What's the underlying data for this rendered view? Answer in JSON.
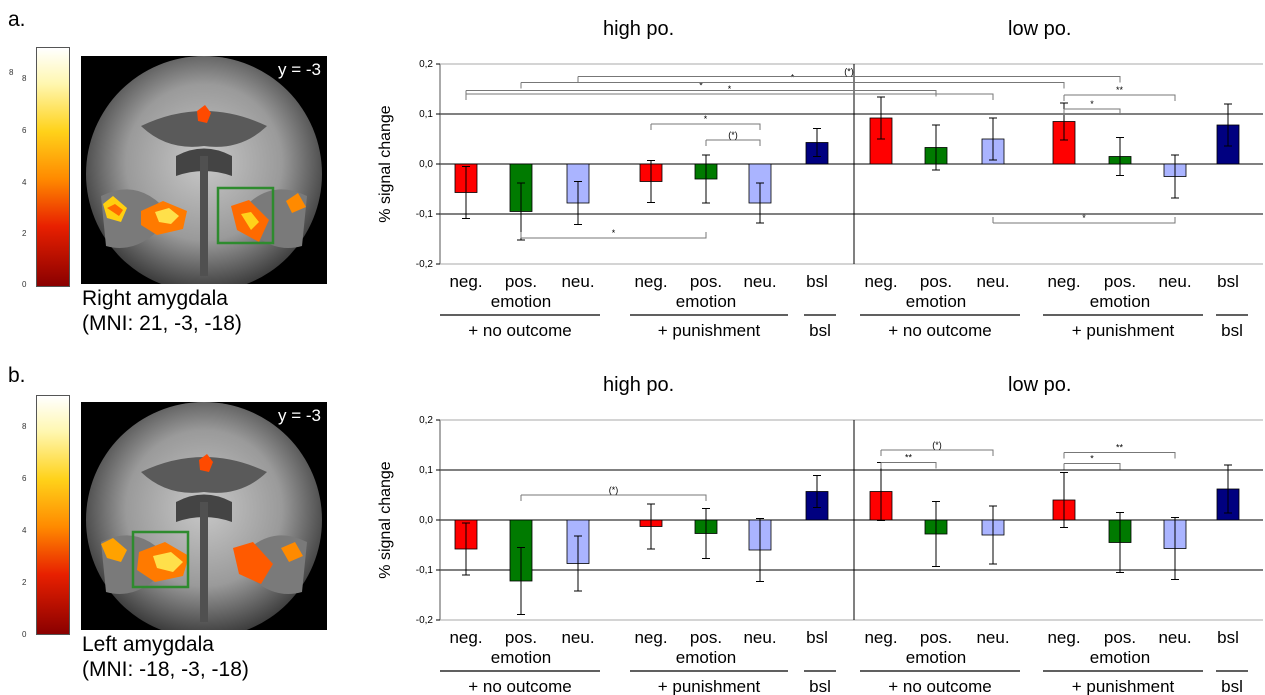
{
  "panels": [
    {
      "label": "a.",
      "slice_label": "y = -3",
      "region": "Right amygdala",
      "mni": "(MNI: 21, -3, -18)",
      "colorbar_ticks": [
        "8",
        "6",
        "4",
        "2",
        "0"
      ]
    },
    {
      "label": "b.",
      "slice_label": "y = -3",
      "region": "Left amygdala",
      "mni": "(MNI: -18, -3, -18)",
      "colorbar_ticks": [
        "8",
        "6",
        "4",
        "2",
        "0"
      ]
    }
  ],
  "colors": {
    "neg": "#ff0000",
    "pos": "#007a00",
    "neu": "#aab4ff",
    "bsl": "#000080"
  },
  "chart_data": [
    {
      "type": "bar",
      "group_titles": [
        "high po.",
        "low po."
      ],
      "ylabel": "% signal change",
      "yticks": [
        "0,2",
        "0,1",
        "0,0",
        "-0,1",
        "-0,2"
      ],
      "ylim": [
        -0.2,
        0.2
      ],
      "categories": [
        "neg.",
        "pos.",
        "neu.",
        "neg.",
        "pos.",
        "neu.",
        "bsl",
        "neg.",
        "pos.",
        "neu.",
        "neg.",
        "pos.",
        "neu.",
        "bsl"
      ],
      "category_types": [
        "neg",
        "pos",
        "neu",
        "neg",
        "pos",
        "neu",
        "bsl",
        "neg",
        "pos",
        "neu",
        "neg",
        "pos",
        "neu",
        "bsl"
      ],
      "values": [
        -0.057,
        -0.095,
        -0.078,
        -0.035,
        -0.03,
        -0.078,
        0.043,
        0.092,
        0.033,
        0.05,
        0.085,
        0.015,
        -0.025,
        0.078
      ],
      "errors": [
        0.052,
        0.057,
        0.043,
        0.042,
        0.048,
        0.04,
        0.028,
        0.042,
        0.045,
        0.042,
        0.037,
        0.038,
        0.043,
        0.042
      ],
      "sublabels": [
        "emotion",
        "emotion",
        "emotion",
        "emotion"
      ],
      "conditions": [
        "+ no outcome",
        "+ punishment",
        "bsl",
        "+ no outcome",
        "+ punishment",
        "bsl"
      ],
      "annotations": [
        {
          "from": 0,
          "to": 9,
          "y": 0.14,
          "label": "*"
        },
        {
          "from": 0,
          "to": 8,
          "y": 0.147,
          "label": "*"
        },
        {
          "from": 1,
          "to": 10,
          "y": 0.163,
          "label": "*"
        },
        {
          "from": 2,
          "to": 11,
          "y": 0.175,
          "label": "(*)"
        },
        {
          "from": 3,
          "to": 5,
          "y": 0.08,
          "label": "*"
        },
        {
          "from": 4,
          "to": 5,
          "y": 0.048,
          "label": "(*)"
        },
        {
          "from": 10,
          "to": 11,
          "y": 0.11,
          "label": "*"
        },
        {
          "from": 10,
          "to": 12,
          "y": 0.138,
          "label": "**"
        },
        {
          "from": 1,
          "to": 4,
          "y": -0.148,
          "label": "*"
        },
        {
          "from": 9,
          "to": 12,
          "y": -0.118,
          "label": "*"
        }
      ]
    },
    {
      "type": "bar",
      "group_titles": [
        "high po.",
        "low po."
      ],
      "ylabel": "% signal change",
      "yticks": [
        "0,2",
        "0,1",
        "0,0",
        "-0,1",
        "-0,2"
      ],
      "ylim": [
        -0.2,
        0.2
      ],
      "categories": [
        "neg.",
        "pos.",
        "neu.",
        "neg.",
        "pos.",
        "neu.",
        "bsl",
        "neg.",
        "pos.",
        "neu.",
        "neg.",
        "pos.",
        "neu.",
        "bsl"
      ],
      "category_types": [
        "neg",
        "pos",
        "neu",
        "neg",
        "pos",
        "neu",
        "bsl",
        "neg",
        "pos",
        "neu",
        "neg",
        "pos",
        "neu",
        "bsl"
      ],
      "values": [
        -0.058,
        -0.122,
        -0.087,
        -0.013,
        -0.027,
        -0.06,
        0.057,
        0.057,
        -0.028,
        -0.03,
        0.04,
        -0.045,
        -0.057,
        0.062
      ],
      "errors": [
        0.052,
        0.067,
        0.055,
        0.045,
        0.05,
        0.063,
        0.032,
        0.058,
        0.065,
        0.058,
        0.055,
        0.06,
        0.062,
        0.048
      ],
      "sublabels": [
        "emotion",
        "emotion",
        "emotion",
        "emotion"
      ],
      "conditions": [
        "+ no outcome",
        "+ punishment",
        "bsl",
        "+ no outcome",
        "+ punishment",
        "bsl"
      ],
      "annotations": [
        {
          "from": 1,
          "to": 4,
          "y": 0.05,
          "label": "(*)"
        },
        {
          "from": 7,
          "to": 8,
          "y": 0.115,
          "label": "**"
        },
        {
          "from": 7,
          "to": 9,
          "y": 0.14,
          "label": "(*)"
        },
        {
          "from": 10,
          "to": 11,
          "y": 0.113,
          "label": "*"
        },
        {
          "from": 10,
          "to": 12,
          "y": 0.135,
          "label": "**"
        }
      ]
    }
  ]
}
